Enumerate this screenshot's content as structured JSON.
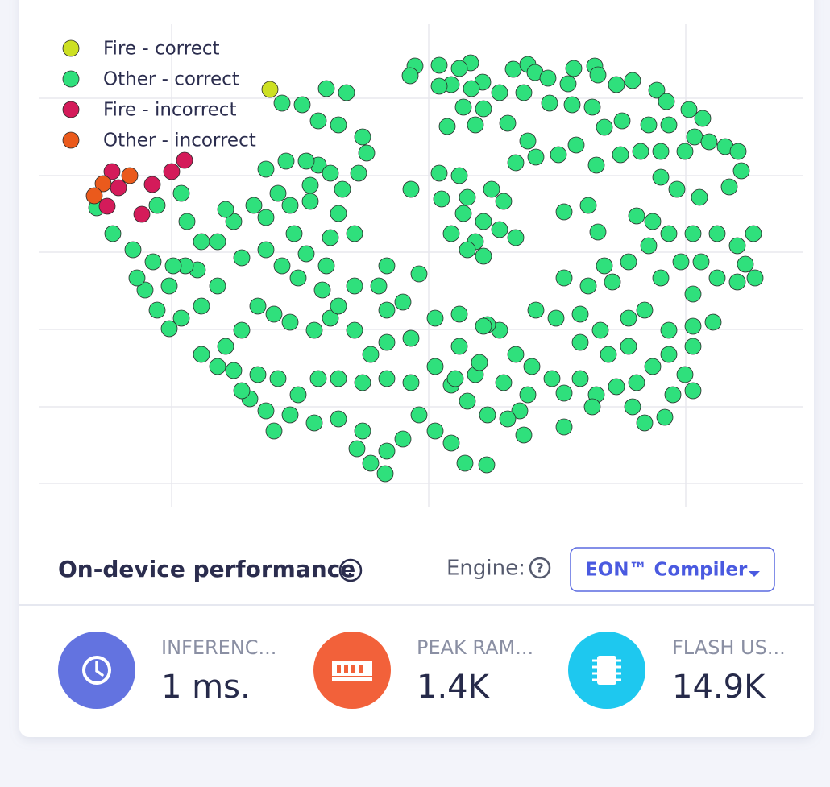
{
  "chart_data": {
    "type": "scatter",
    "xlim": [
      48,
      998
    ],
    "ylim": [
      -630,
      -30
    ],
    "xticks": [
      213,
      532,
      851
    ],
    "yticks": [
      -600,
      -505,
      -409,
      -313,
      -218,
      -122
    ],
    "grid": true,
    "legend": "upper left",
    "series": [
      {
        "name": "Fire - correct",
        "color": "#cde023",
        "x": [
          335
        ],
        "values": [
          -111
        ]
      },
      {
        "name": "Other - correct",
        "color": "#2fe07c",
        "x": [
          515,
          509,
          545,
          584,
          560,
          599,
          637,
          655,
          664,
          680,
          712,
          738,
          742,
          765,
          785,
          815,
          827,
          855,
          872,
          862,
          880,
          900,
          916,
          850,
          820,
          795,
          770,
          740,
          715,
          693,
          665,
          640,
          655,
          710,
          735,
          750,
          772,
          805,
          830,
          575,
          600,
          630,
          555,
          590,
          620,
          650,
          682,
          705,
          585,
          545,
          570,
          920,
          905,
          868,
          840,
          820,
          935,
          915,
          890,
          860,
          830,
          805,
          870,
          890,
          915,
          937,
          925,
          845,
          820,
          860,
          885,
          860,
          830,
          800,
          780,
          760,
          730,
          700,
          720,
          690,
          665,
          750,
          780,
          700,
          730,
          742,
          790,
          810,
          860,
          830,
          810,
          790,
          765,
          740,
          720,
          700,
          685,
          660,
          640,
          620,
          605,
          655,
          645,
          630,
          650,
          605,
          580,
          560,
          590,
          625,
          700,
          735,
          785,
          800,
          825,
          850,
          860,
          835,
          780,
          755,
          745,
          720,
          545,
          570,
          548,
          580,
          610,
          625,
          600,
          575,
          560,
          590,
          620,
          640,
          600,
          580,
          577,
          604,
          560,
          540,
          520,
          500,
          480,
          460,
          478,
          443,
          450,
          420,
          390,
          360,
          340,
          330,
          310,
          300,
          320,
          345,
          370,
          395,
          420,
          450,
          480,
          510,
          540,
          565,
          595,
          570,
          540,
          570,
          600,
          510,
          480,
          460,
          440,
          410,
          390,
          360,
          340,
          320,
          300,
          280,
          290,
          270,
          250,
          480,
          500,
          520,
          470,
          440,
          420,
          400,
          370,
          350,
          330,
          300,
          270,
          250,
          225,
          210,
          195,
          180,
          170,
          190,
          210,
          245,
          270,
          290,
          280,
          250,
          230,
          215,
          165,
          140,
          120,
          195,
          225,
          232,
          330,
          355,
          345,
          315,
          330,
          360,
          395,
          410,
          385,
          425,
          445,
          455,
          450,
          420,
          395,
          375,
          350,
          405,
          430,
          385,
          420,
          440,
          410,
          365,
          380,
          405,
          480,
          510,
          380
        ],
        "values": [
          -82,
          -94,
          -81,
          -78,
          -105,
          -102,
          -86,
          -80,
          -90,
          -97,
          -85,
          -82,
          -93,
          -105,
          -100,
          -112,
          -126,
          -136,
          -147,
          -170,
          -176,
          -182,
          -188,
          -188,
          -188,
          -188,
          -192,
          -205,
          -180,
          -192,
          -195,
          -202,
          -175,
          -130,
          -133,
          -158,
          -150,
          -155,
          -155,
          -133,
          -135,
          -153,
          -157,
          -155,
          -115,
          -115,
          -128,
          -104,
          -110,
          -107,
          -85,
          -212,
          -232,
          -245,
          -235,
          -220,
          -290,
          -305,
          -290,
          -290,
          -290,
          -305,
          -325,
          -345,
          -350,
          -345,
          -328,
          -325,
          -345,
          -365,
          -400,
          -405,
          -410,
          -385,
          -395,
          -350,
          -355,
          -345,
          -390,
          -395,
          -385,
          -330,
          -325,
          -263,
          -255,
          -288,
          -268,
          -275,
          -430,
          -440,
          -455,
          -475,
          -480,
          -490,
          -470,
          -488,
          -470,
          -455,
          -440,
          -410,
          -403,
          -490,
          -510,
          -520,
          -540,
          -515,
          -498,
          -478,
          -465,
          -475,
          -530,
          -505,
          -505,
          -525,
          -518,
          -465,
          -485,
          -490,
          -430,
          -440,
          -410,
          -425,
          -215,
          -218,
          -247,
          -245,
          -235,
          -250,
          -275,
          -265,
          -290,
          -300,
          -285,
          -295,
          -318,
          -310,
          -575,
          -577,
          -550,
          -535,
          -515,
          -545,
          -560,
          -575,
          -588,
          -557,
          -535,
          -520,
          -525,
          -515,
          -535,
          -510,
          -495,
          -485,
          -465,
          -470,
          -490,
          -470,
          -470,
          -475,
          -470,
          -475,
          -455,
          -470,
          -450,
          -430,
          -395,
          -390,
          -405,
          -420,
          -425,
          -440,
          -410,
          -395,
          -410,
          -400,
          -390,
          -380,
          -410,
          -430,
          -460,
          -455,
          -440,
          -385,
          -375,
          -340,
          -355,
          -355,
          -380,
          -360,
          -345,
          -330,
          -310,
          -320,
          -355,
          -380,
          -395,
          -408,
          -385,
          -360,
          -345,
          -325,
          -355,
          -335,
          -300,
          -275,
          -260,
          -300,
          -330,
          -330,
          -310,
          -290,
          -258,
          -255,
          -240,
          -275,
          -210,
          -200,
          -240,
          -255,
          -270,
          -255,
          -205,
          -215,
          -230,
          -235,
          -215,
          -190,
          -170,
          -155,
          -150,
          -130,
          -128,
          -110,
          -115,
          -250,
          -265,
          -290,
          -295,
          -290,
          -315,
          -330,
          -330,
          -235,
          -200
        ]
      },
      {
        "name": "Fire - incorrect",
        "color": "#d41b5a",
        "x": [
          139,
          147,
          176,
          189,
          213,
          133,
          229
        ],
        "values": [
          -213,
          -233,
          -266,
          -229,
          -213,
          -256,
          -199
        ]
      },
      {
        "name": "Other - incorrect",
        "color": "#ea5a1c",
        "x": [
          128,
          117,
          161
        ],
        "values": [
          -228,
          -243,
          -218
        ]
      }
    ]
  },
  "performance": {
    "title": "On-device performance",
    "engine_label": "Engine:",
    "engine": "EON™ Compiler",
    "metrics": [
      {
        "label": "INFERENC...",
        "value": "1 ms."
      },
      {
        "label": "PEAK RAM...",
        "value": "1.4K"
      },
      {
        "label": "FLASH US...",
        "value": "14.9K"
      }
    ]
  }
}
